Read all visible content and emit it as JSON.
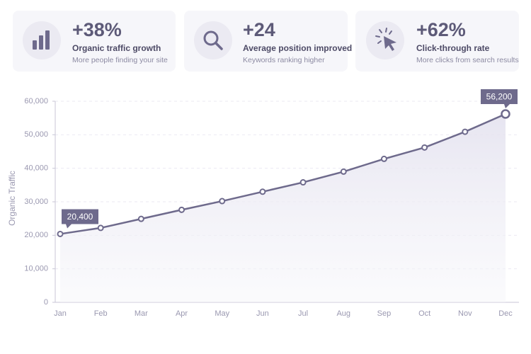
{
  "cards": [
    {
      "value": "+38%",
      "label": "Organic traffic growth",
      "sublabel": "More people finding your site"
    },
    {
      "value": "+24",
      "label": "Average position improved",
      "sublabel": "Keywords ranking higher"
    },
    {
      "value": "+62%",
      "label": "Click-through rate",
      "sublabel": "More clicks from search results"
    }
  ],
  "chart_data": {
    "type": "line",
    "y_label": "Organic Traffic",
    "categories": [
      "Jan",
      "Feb",
      "Mar",
      "Apr",
      "May",
      "Jun",
      "Jul",
      "Aug",
      "Sep",
      "Oct",
      "Nov",
      "Dec"
    ],
    "values": [
      20400,
      22200,
      24900,
      27600,
      30200,
      33000,
      35800,
      39000,
      42800,
      46200,
      50900,
      56200
    ],
    "value_labels": [
      "20,400",
      null,
      null,
      null,
      null,
      null,
      null,
      null,
      null,
      null,
      null,
      "56,200"
    ],
    "color": "#6e6a8c",
    "ylim": [
      0,
      60000
    ],
    "yticks": [
      0,
      {
        "value": 10000,
        "label": "10,000"
      },
      {
        "value": 20000,
        "label": "20,000"
      },
      {
        "value": 30000,
        "label": "30,000"
      },
      {
        "value": 40000,
        "label": "40,000"
      },
      {
        "value": 50000,
        "label": "50,000"
      },
      {
        "value": 60000,
        "label": "60,000"
      }
    ],
    "grid": true
  }
}
